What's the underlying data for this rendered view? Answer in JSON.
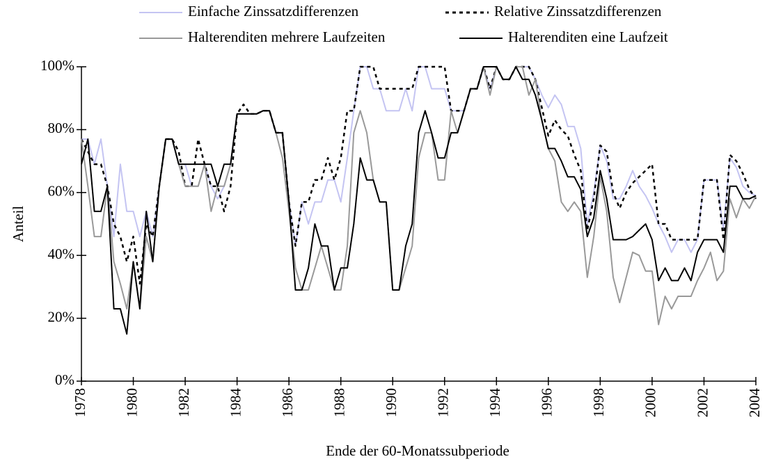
{
  "chart_data": {
    "type": "line",
    "xlabel": "Ende der 60-Monatssubperiode",
    "ylabel": "Anteil",
    "x": [
      1978,
      1978.25,
      1978.5,
      1978.75,
      1979,
      1979.25,
      1979.5,
      1979.75,
      1980,
      1980.25,
      1980.5,
      1980.75,
      1981,
      1981.25,
      1981.5,
      1981.75,
      1982,
      1982.25,
      1982.5,
      1982.75,
      1983,
      1983.25,
      1983.5,
      1983.75,
      1984,
      1984.25,
      1984.5,
      1984.75,
      1985,
      1985.25,
      1985.5,
      1985.75,
      1986,
      1986.25,
      1986.5,
      1986.75,
      1987,
      1987.25,
      1987.5,
      1987.75,
      1988,
      1988.25,
      1988.5,
      1988.75,
      1989,
      1989.25,
      1989.5,
      1989.75,
      1990,
      1990.25,
      1990.5,
      1990.75,
      1991,
      1991.25,
      1991.5,
      1991.75,
      1992,
      1992.25,
      1992.5,
      1992.75,
      1993,
      1993.25,
      1993.5,
      1993.75,
      1994,
      1994.25,
      1994.5,
      1994.75,
      1995,
      1995.25,
      1995.5,
      1995.75,
      1996,
      1996.25,
      1996.5,
      1996.75,
      1997,
      1997.25,
      1997.5,
      1997.75,
      1998,
      1998.25,
      1998.5,
      1998.75,
      1999,
      1999.25,
      1999.5,
      1999.75,
      2000,
      2000.25,
      2000.5,
      2000.75,
      2001,
      2001.25,
      2001.5,
      2001.75,
      2002,
      2002.25,
      2002.5,
      2002.75,
      2003,
      2003.25,
      2003.5,
      2003.75,
      2004
    ],
    "series": [
      {
        "name": "Einfache Zinssatzdifferenzen",
        "color": "#c4c4f2",
        "style": "solid",
        "values": [
          77,
          77,
          69,
          77,
          62,
          46,
          69,
          54,
          54,
          46,
          54,
          46,
          62,
          77,
          77,
          69,
          69,
          62,
          62,
          69,
          62,
          58,
          62,
          69,
          85,
          85,
          85,
          85,
          86,
          86,
          79,
          79,
          57,
          43,
          57,
          50,
          57,
          57,
          64,
          64,
          57,
          71,
          86,
          100,
          100,
          93,
          93,
          86,
          86,
          86,
          93,
          86,
          100,
          100,
          93,
          93,
          93,
          86,
          86,
          86,
          93,
          93,
          100,
          93,
          100,
          96,
          96,
          100,
          100,
          100,
          96,
          91,
          87,
          91,
          88,
          81,
          81,
          74,
          50,
          60,
          75,
          70,
          58,
          58,
          62,
          67,
          62,
          59,
          55,
          50,
          46,
          41,
          45,
          45,
          41,
          45,
          64,
          64,
          64,
          48,
          71,
          68,
          62,
          60,
          59
        ]
      },
      {
        "name": "Relative Zinssatzdifferenzen",
        "color": "#000000",
        "style": "dotted",
        "values": [
          77,
          73,
          69,
          69,
          62,
          50,
          46,
          38,
          46,
          31,
          50,
          46,
          62,
          77,
          77,
          73,
          62,
          62,
          77,
          69,
          62,
          62,
          54,
          62,
          85,
          88,
          85,
          85,
          86,
          86,
          79,
          79,
          57,
          43,
          57,
          57,
          64,
          64,
          71,
          64,
          71,
          86,
          86,
          100,
          100,
          100,
          93,
          93,
          93,
          93,
          93,
          93,
          100,
          100,
          100,
          100,
          100,
          86,
          86,
          86,
          93,
          93,
          100,
          93,
          100,
          96,
          96,
          100,
          100,
          100,
          96,
          87,
          78,
          83,
          80,
          78,
          72,
          67,
          48,
          58,
          75,
          73,
          60,
          55,
          60,
          63,
          65,
          67,
          69,
          50,
          50,
          45,
          45,
          45,
          45,
          45,
          64,
          64,
          64,
          45,
          72,
          70,
          66,
          61,
          58
        ]
      },
      {
        "name": "Halterenditen mehrere Laufzeiten",
        "color": "#999999",
        "style": "solid",
        "values": [
          77,
          62,
          46,
          46,
          62,
          38,
          31,
          23,
          38,
          23,
          46,
          38,
          62,
          77,
          77,
          69,
          62,
          62,
          62,
          69,
          54,
          62,
          62,
          69,
          85,
          85,
          85,
          85,
          86,
          86,
          79,
          71,
          54,
          36,
          29,
          29,
          36,
          43,
          36,
          29,
          29,
          43,
          79,
          86,
          79,
          64,
          57,
          57,
          29,
          29,
          36,
          43,
          71,
          79,
          79,
          64,
          64,
          86,
          79,
          86,
          93,
          93,
          100,
          91,
          100,
          96,
          96,
          100,
          100,
          91,
          96,
          83,
          74,
          70,
          57,
          54,
          57,
          54,
          33,
          46,
          65,
          54,
          33,
          25,
          33,
          41,
          40,
          35,
          35,
          18,
          27,
          23,
          27,
          27,
          27,
          32,
          36,
          41,
          32,
          35,
          58,
          52,
          58,
          55,
          59
        ]
      },
      {
        "name": "Halterenditen eine Laufzeit",
        "color": "#000000",
        "style": "solid",
        "values": [
          69,
          77,
          54,
          54,
          62,
          23,
          23,
          15,
          38,
          23,
          54,
          38,
          62,
          77,
          77,
          69,
          69,
          69,
          69,
          69,
          69,
          62,
          69,
          69,
          85,
          85,
          85,
          85,
          86,
          86,
          79,
          79,
          57,
          29,
          29,
          36,
          50,
          43,
          43,
          29,
          36,
          36,
          50,
          71,
          64,
          64,
          57,
          57,
          29,
          29,
          43,
          50,
          79,
          86,
          79,
          71,
          71,
          79,
          79,
          86,
          93,
          93,
          100,
          100,
          100,
          96,
          96,
          100,
          96,
          96,
          91,
          83,
          74,
          74,
          70,
          65,
          65,
          61,
          46,
          52,
          67,
          58,
          45,
          45,
          45,
          46,
          48,
          50,
          45,
          32,
          36,
          32,
          32,
          36,
          32,
          41,
          45,
          45,
          45,
          41,
          62,
          62,
          58,
          58,
          59
        ]
      }
    ],
    "xlim": [
      1978,
      2004
    ],
    "xticks": [
      1978,
      1980,
      1982,
      1984,
      1986,
      1988,
      1990,
      1992,
      1994,
      1996,
      1998,
      2000,
      2002,
      2004
    ],
    "ylim": [
      0,
      100
    ],
    "yticks": [
      {
        "value": 0,
        "label": "0%"
      },
      {
        "value": 20,
        "label": "20%"
      },
      {
        "value": 40,
        "label": "40%"
      },
      {
        "value": 60,
        "label": "60%"
      },
      {
        "value": 80,
        "label": "80%"
      },
      {
        "value": 100,
        "label": "100%"
      }
    ],
    "grid": false
  }
}
